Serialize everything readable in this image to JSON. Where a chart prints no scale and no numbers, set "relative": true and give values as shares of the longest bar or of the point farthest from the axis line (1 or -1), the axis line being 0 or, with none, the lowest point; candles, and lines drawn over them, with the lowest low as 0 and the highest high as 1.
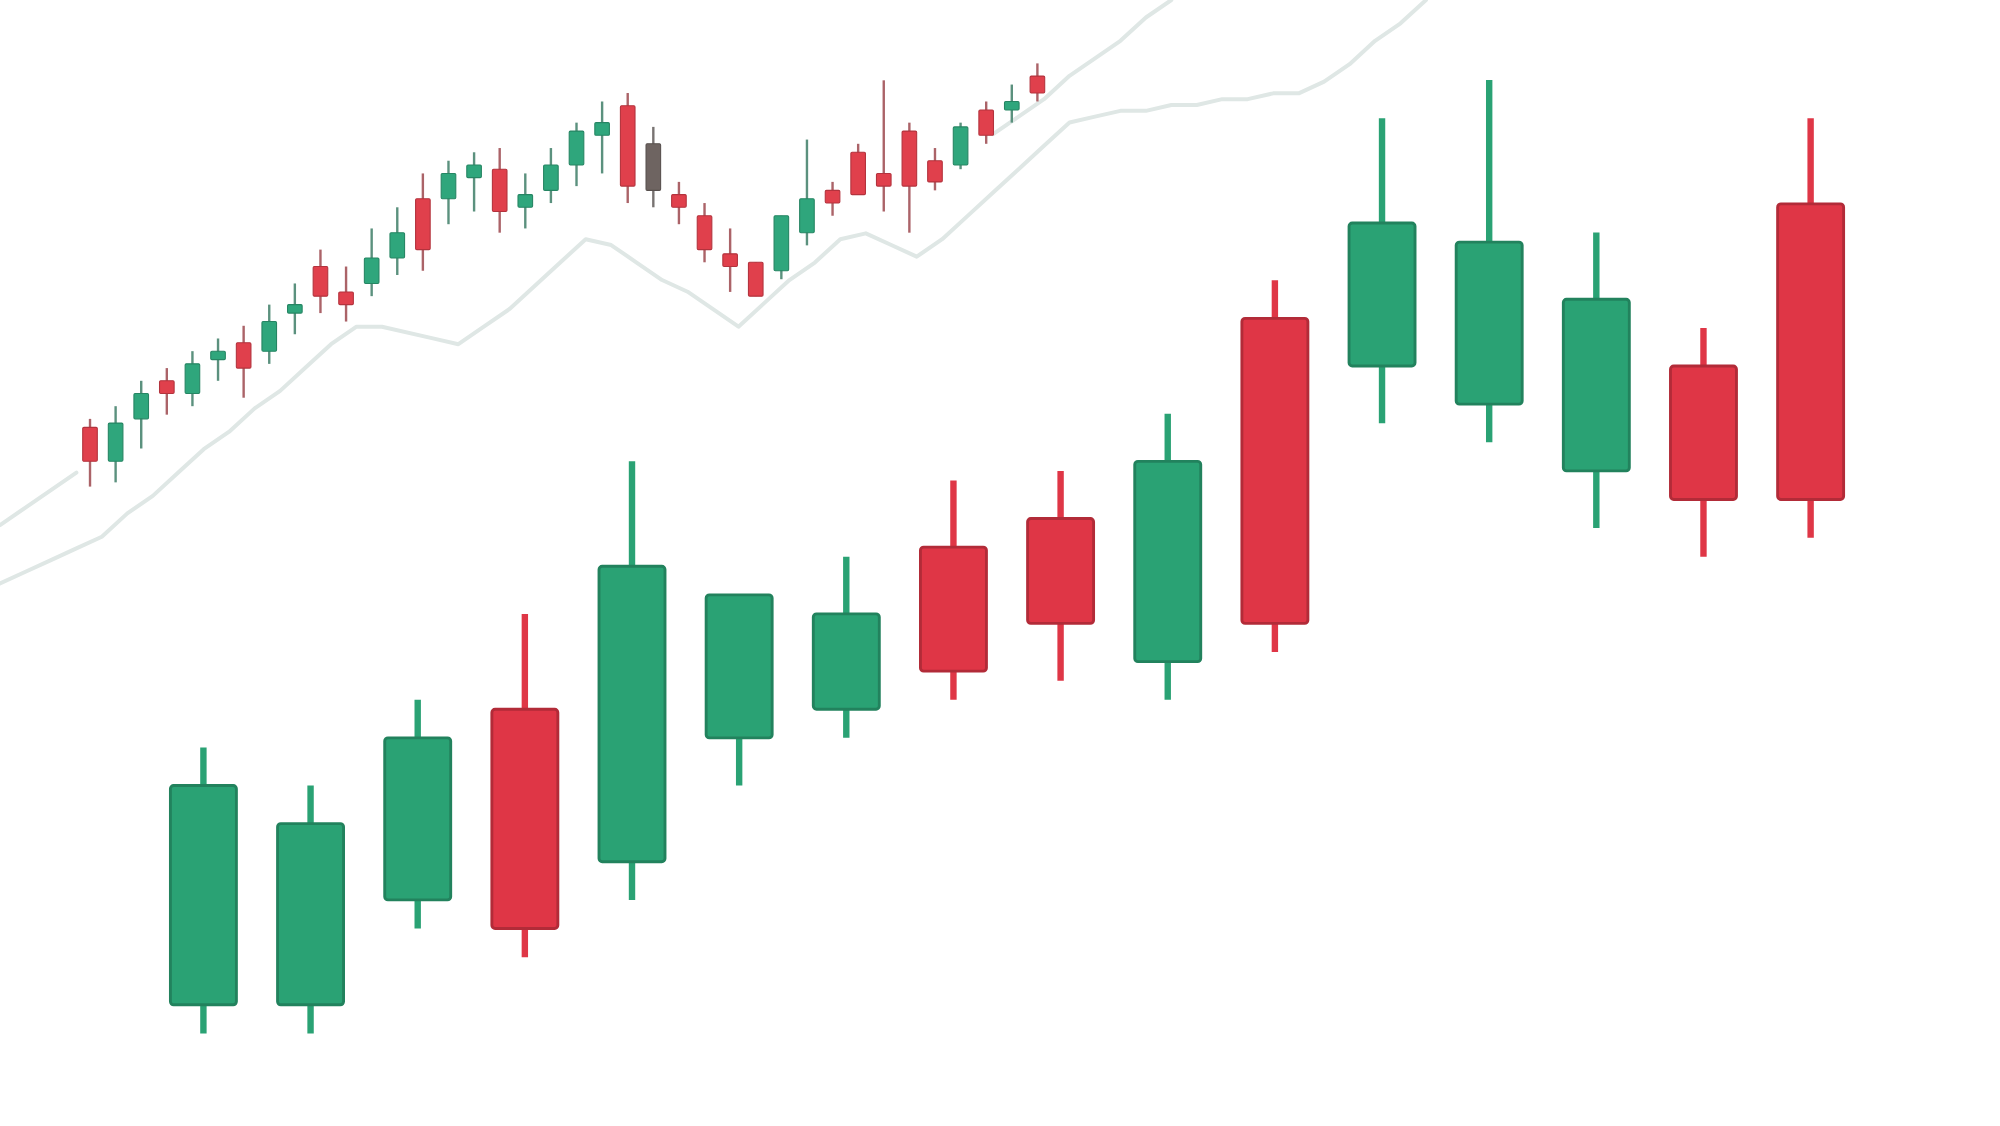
{
  "chart_data": [
    {
      "type": "candlestick",
      "relative": true,
      "categories": [
        null,
        null,
        null,
        null,
        null,
        null,
        null,
        null,
        null,
        null,
        null,
        null,
        null,
        null,
        null,
        null
      ],
      "ohlc": [
        [
          0.03,
          0.3,
          0,
          0.26
        ],
        [
          0.03,
          0.26,
          0,
          0.22
        ],
        [
          0.14,
          0.35,
          0.11,
          0.31
        ],
        [
          0.34,
          0.44,
          0.08,
          0.11
        ],
        [
          0.18,
          0.6,
          0.14,
          0.49
        ],
        [
          0.31,
          0.46,
          0.26,
          0.46
        ],
        [
          0.34,
          0.5,
          0.31,
          0.44
        ],
        [
          0.51,
          0.58,
          0.35,
          0.38
        ],
        [
          0.54,
          0.59,
          0.37,
          0.43
        ],
        [
          0.39,
          0.65,
          0.35,
          0.6
        ],
        [
          0.75,
          0.79,
          0.4,
          0.43
        ],
        [
          0.7,
          0.96,
          0.64,
          0.85
        ],
        [
          0.66,
          1,
          0.62,
          0.83
        ],
        [
          0.59,
          0.84,
          0.53,
          0.77
        ],
        [
          0.7,
          0.74,
          0.5,
          0.56
        ],
        [
          0.87,
          0.96,
          0.52,
          0.56
        ]
      ],
      "colors": [
        "#2aa274",
        "#2aa274",
        "#2aa274",
        "#df3646",
        "#2aa274",
        "#2aa274",
        "#2aa274",
        "#df3646",
        "#df3646",
        "#2aa274",
        "#df3646",
        "#2aa274",
        "#2aa274",
        "#2aa274",
        "#df3646",
        "#df3646"
      ]
    },
    {
      "type": "candlestick",
      "relative": true,
      "categories": [
        null,
        null,
        null,
        null,
        null,
        null,
        null,
        null,
        null,
        null,
        null,
        null,
        null,
        null,
        null,
        null,
        null,
        null,
        null,
        null,
        null,
        null,
        null,
        null,
        null,
        null,
        null,
        null,
        null,
        null,
        null,
        null,
        null,
        null,
        null,
        null,
        null,
        null
      ],
      "ohlc": [
        [
          0.14,
          0.16,
          0,
          0.06
        ],
        [
          0.06,
          0.19,
          0.01,
          0.15
        ],
        [
          0.16,
          0.25,
          0.09,
          0.22
        ],
        [
          0.25,
          0.28,
          0.17,
          0.22
        ],
        [
          0.22,
          0.32,
          0.19,
          0.29
        ],
        [
          0.3,
          0.35,
          0.25,
          0.32
        ],
        [
          0.34,
          0.38,
          0.21,
          0.28
        ],
        [
          0.32,
          0.43,
          0.29,
          0.39
        ],
        [
          0.41,
          0.48,
          0.36,
          0.43
        ],
        [
          0.52,
          0.56,
          0.41,
          0.45
        ],
        [
          0.46,
          0.52,
          0.39,
          0.43
        ],
        [
          0.48,
          0.61,
          0.45,
          0.54
        ],
        [
          0.54,
          0.66,
          0.5,
          0.6
        ],
        [
          0.68,
          0.74,
          0.51,
          0.56
        ],
        [
          0.68,
          0.77,
          0.62,
          0.74
        ],
        [
          0.73,
          0.79,
          0.65,
          0.76
        ],
        [
          0.75,
          0.8,
          0.6,
          0.65
        ],
        [
          0.66,
          0.74,
          0.61,
          0.69
        ],
        [
          0.7,
          0.8,
          0.67,
          0.76
        ],
        [
          0.76,
          0.86,
          0.71,
          0.84
        ],
        [
          0.83,
          0.91,
          0.74,
          0.86
        ],
        [
          0.9,
          0.93,
          0.67,
          0.71
        ],
        [
          0.81,
          0.85,
          0.66,
          0.7
        ],
        [
          0.69,
          0.72,
          0.62,
          0.66
        ],
        [
          0.64,
          0.67,
          0.53,
          0.56
        ],
        [
          0.55,
          0.61,
          0.46,
          0.52
        ],
        [
          0.53,
          0.53,
          0.45,
          0.45
        ],
        [
          0.51,
          0.64,
          0.49,
          0.64
        ],
        [
          0.6,
          0.82,
          0.57,
          0.68
        ],
        [
          0.7,
          0.72,
          0.64,
          0.67
        ],
        [
          0.79,
          0.81,
          0.69,
          0.69
        ],
        [
          0.74,
          0.96,
          0.65,
          0.71
        ],
        [
          0.84,
          0.86,
          0.6,
          0.71
        ],
        [
          0.77,
          0.8,
          0.7,
          0.72
        ],
        [
          0.76,
          0.86,
          0.75,
          0.85
        ],
        [
          0.89,
          0.91,
          0.81,
          0.83
        ],
        [
          0.89,
          0.95,
          0.86,
          0.91
        ],
        [
          0.97,
          1,
          0.91,
          0.93
        ]
      ],
      "colors": [
        "#e0404c",
        "#2fa67c",
        "#2fa67c",
        "#e0404c",
        "#2fa67c",
        "#2fa67c",
        "#e0404c",
        "#2fa67c",
        "#2fa67c",
        "#e0404c",
        "#e0404c",
        "#2fa67c",
        "#2fa67c",
        "#e0404c",
        "#2fa67c",
        "#2fa67c",
        "#e0404c",
        "#2fa67c",
        "#2fa67c",
        "#2fa67c",
        "#2fa67c",
        "#e0404c",
        "#6e6461",
        "#e0404c",
        "#e0404c",
        "#e0404c",
        "#e0404c",
        "#2fa67c",
        "#2fa67c",
        "#e0404c",
        "#e0404c",
        "#e0404c",
        "#e0404c",
        "#e0404c",
        "#2fa67c",
        "#e0404c",
        "#2fa67c",
        "#e0404c"
      ]
    },
    {
      "type": "line",
      "relative": true,
      "categories": [
        null,
        null,
        null,
        null,
        null,
        null,
        null,
        null,
        null,
        null,
        null,
        null,
        null,
        null,
        null,
        null,
        null,
        null,
        null,
        null,
        null,
        null,
        null,
        null,
        null,
        null,
        null,
        null,
        null,
        null,
        null,
        null,
        null,
        null,
        null,
        null,
        null,
        null,
        null,
        null,
        null,
        null,
        null,
        null,
        null,
        null,
        null,
        null,
        null,
        null,
        null,
        null,
        null,
        null,
        null,
        null,
        null
      ],
      "series": [
        {
          "color": "#dfe7e5",
          "values": [
            0,
            0.02,
            0.04,
            0.06,
            0.08,
            0.12,
            0.15,
            0.19,
            0.23,
            0.26,
            0.3,
            0.33,
            0.37,
            0.41,
            0.44,
            0.44,
            0.43,
            0.42,
            0.41,
            0.44,
            0.47,
            0.51,
            0.55,
            0.59,
            0.58,
            0.55,
            0.52,
            0.5,
            0.47,
            0.44,
            0.48,
            0.52,
            0.55,
            0.59,
            0.6,
            0.58,
            0.56,
            0.59,
            0.63,
            0.67,
            0.71,
            0.75,
            0.79,
            0.8,
            0.81,
            0.81,
            0.82,
            0.82,
            0.83,
            0.83,
            0.84,
            0.84,
            0.86,
            0.89,
            0.93,
            0.96,
            1
          ]
        },
        {
          "color": "#dfe7e5",
          "values": [
            0.1,
            0.13,
            0.16,
            0.19,
            null,
            null,
            null,
            null,
            null,
            null,
            null,
            null,
            null,
            null,
            null,
            null,
            null,
            null,
            null,
            null,
            null,
            null,
            null,
            null,
            null,
            null,
            null,
            null,
            null,
            null,
            null,
            null,
            null,
            null,
            null,
            null,
            null,
            null,
            null,
            0.77,
            0.8,
            0.83,
            0.87,
            0.9,
            0.93,
            0.97,
            1,
            null,
            null,
            null,
            null,
            null,
            null,
            null,
            null,
            null,
            null
          ]
        }
      ]
    }
  ]
}
